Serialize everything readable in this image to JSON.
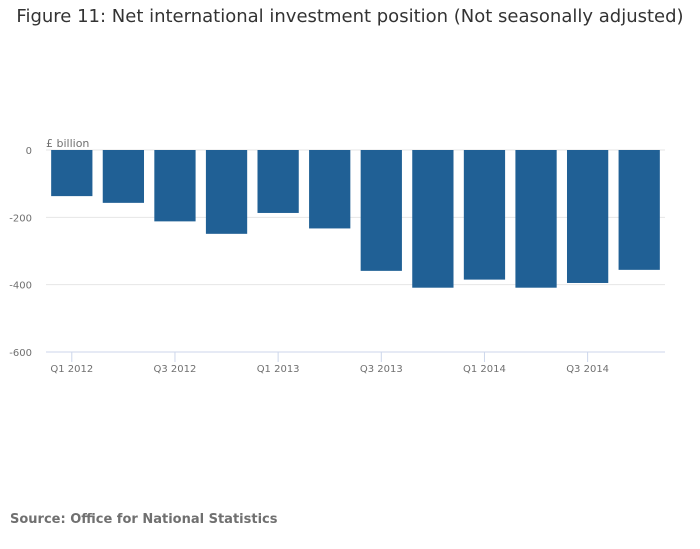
{
  "chart_data": {
    "type": "bar",
    "title": "Figure 11: Net international investment position (Not seasonally adjusted)",
    "ylabel": "£ billion",
    "xlabel": "",
    "categories": [
      "Q1 2012",
      "Q2 2012",
      "Q3 2012",
      "Q4 2012",
      "Q1 2013",
      "Q2 2013",
      "Q3 2013",
      "Q4 2013",
      "Q1 2014",
      "Q2 2014",
      "Q3 2014",
      "Q4 2014"
    ],
    "values": [
      -137,
      -157,
      -212,
      -249,
      -187,
      -233,
      -359,
      -409,
      -385,
      -409,
      -395,
      -356
    ],
    "ylim": [
      -600,
      0
    ],
    "yticks": [
      0,
      -200,
      -400,
      -600
    ],
    "xtick_labels": [
      "Q1 2012",
      "Q3 2012",
      "Q1 2013",
      "Q3 2013",
      "Q1 2014",
      "Q3 2014"
    ],
    "bar_color": "#206095",
    "grid": true
  },
  "source": "Source: Office for National Statistics"
}
